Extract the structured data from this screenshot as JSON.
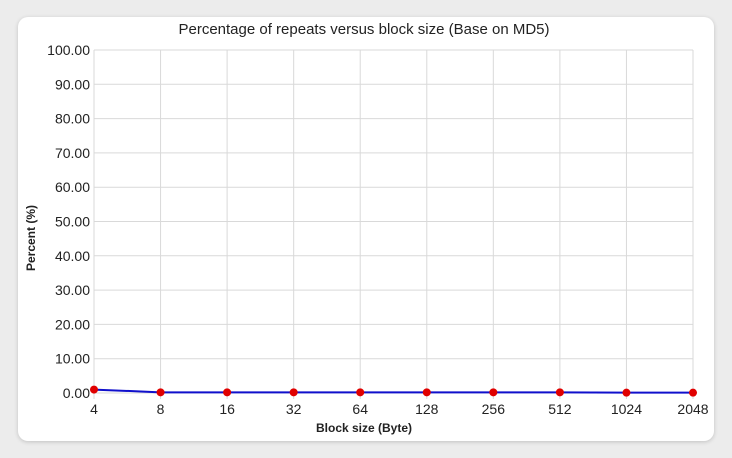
{
  "chart_data": {
    "type": "line",
    "title": "Percentage of repeats versus block size (Base on MD5)",
    "xlabel": "Block size (Byte)",
    "ylabel": "Percent (%)",
    "categories": [
      "4",
      "8",
      "16",
      "32",
      "64",
      "128",
      "256",
      "512",
      "1024",
      "2048"
    ],
    "series": [
      {
        "values": [
          1.0,
          0.2,
          0.2,
          0.2,
          0.2,
          0.2,
          0.2,
          0.2,
          0.1,
          0.1
        ]
      }
    ],
    "ylim": [
      0,
      100
    ],
    "yticks": [
      "0.00",
      "10.00",
      "20.00",
      "30.00",
      "40.00",
      "50.00",
      "60.00",
      "70.00",
      "80.00",
      "90.00",
      "100.00"
    ],
    "grid": true,
    "legend": "none",
    "colors": {
      "line": "#1010cc",
      "marker": "#e00000",
      "grid": "#d9d9d9"
    }
  }
}
